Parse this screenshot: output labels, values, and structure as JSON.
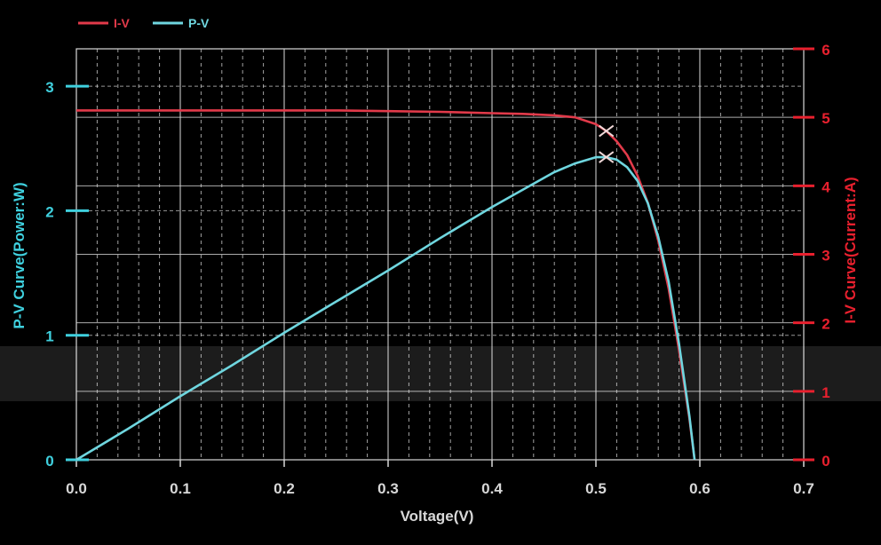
{
  "chart_data": {
    "type": "line",
    "legend": {
      "position": "top-left",
      "items": [
        "I-V",
        "P-V"
      ]
    },
    "xlabel": "Voltage(V)",
    "ylabel_left": "P-V Curve(Power:W)",
    "ylabel_right": "I-V Curve(Current:A)",
    "xlim": [
      0,
      0.7
    ],
    "ylim_left": [
      0,
      3.3
    ],
    "ylim_right": [
      0,
      6
    ],
    "x_ticks": [
      "0.0",
      "0.1",
      "0.2",
      "0.3",
      "0.4",
      "0.5",
      "0.6",
      "0.7"
    ],
    "y_left_ticks": [
      "0",
      "1",
      "2",
      "3"
    ],
    "y_right_ticks": [
      "0",
      "1",
      "2",
      "3",
      "4",
      "5",
      "6"
    ],
    "grid": true,
    "colors": {
      "iv": "#e23a4a",
      "pv": "#6fd6df",
      "left_axis": "#3fd0de",
      "right_axis": "#e8202e",
      "grid": "#d8d8d8"
    },
    "series": [
      {
        "name": "I-V",
        "axis": "right",
        "x": [
          0,
          0.05,
          0.1,
          0.15,
          0.2,
          0.25,
          0.3,
          0.35,
          0.4,
          0.43,
          0.46,
          0.48,
          0.5,
          0.51,
          0.52,
          0.53,
          0.54,
          0.55,
          0.56,
          0.57,
          0.58,
          0.59,
          0.595
        ],
        "y": [
          5.1,
          5.1,
          5.1,
          5.1,
          5.1,
          5.1,
          5.09,
          5.08,
          5.06,
          5.05,
          5.03,
          5.0,
          4.9,
          4.8,
          4.65,
          4.45,
          4.15,
          3.75,
          3.2,
          2.5,
          1.6,
          0.6,
          0
        ]
      },
      {
        "name": "P-V",
        "axis": "left",
        "x": [
          0,
          0.05,
          0.1,
          0.15,
          0.2,
          0.25,
          0.3,
          0.35,
          0.4,
          0.43,
          0.46,
          0.48,
          0.5,
          0.51,
          0.52,
          0.53,
          0.54,
          0.55,
          0.56,
          0.57,
          0.58,
          0.59,
          0.595
        ],
        "y": [
          0,
          0.25,
          0.51,
          0.76,
          1.02,
          1.27,
          1.52,
          1.78,
          2.03,
          2.17,
          2.31,
          2.38,
          2.43,
          2.43,
          2.41,
          2.35,
          2.24,
          2.06,
          1.79,
          1.43,
          0.93,
          0.35,
          0
        ]
      }
    ],
    "markers": [
      {
        "series": "I-V",
        "x": 0.51,
        "y": 4.8
      },
      {
        "series": "P-V",
        "x": 0.51,
        "y": 2.43
      }
    ]
  }
}
